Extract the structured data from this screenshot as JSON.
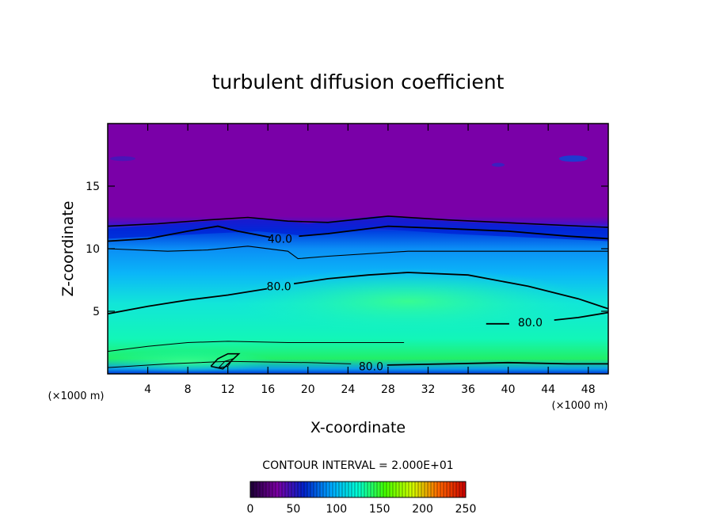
{
  "chart_data": {
    "type": "contour",
    "title": "turbulent diffusion coefficient",
    "xlabel": "X-coordinate",
    "ylabel": "Z-coordinate",
    "x_unit": "(×1000 m)",
    "xlim": [
      0,
      50
    ],
    "ylim": [
      0,
      20
    ],
    "x_ticks": [
      4,
      8,
      12,
      16,
      20,
      24,
      28,
      32,
      36,
      40,
      44,
      48
    ],
    "y_ticks": [
      5,
      10,
      15
    ],
    "contour_interval_text": "CONTOUR INTERVAL = 2.000E+01",
    "contour_labels": [
      {
        "text": "40.0",
        "x": 17.2,
        "y": 10.8
      },
      {
        "text": "80.0",
        "x": 17.1,
        "y": 7.0
      },
      {
        "text": "80.0",
        "x": 42.2,
        "y": 4.1
      },
      {
        "text": "80.0",
        "x": 26.3,
        "y": 0.6
      }
    ],
    "colorbar": {
      "min": 0,
      "max": 250,
      "tick_labels": [
        "0",
        "50",
        "100",
        "150",
        "200",
        "250"
      ],
      "colors": [
        "#1c0036",
        "#7b00a3",
        "#0022cc",
        "#00a8ff",
        "#00ffd5",
        "#44ff00",
        "#d2ff00",
        "#ff6600",
        "#cc0000"
      ]
    },
    "regions": {
      "upper": "#7800a6",
      "mid": "#0bb0fa",
      "lower": "#12f3c2",
      "bottom": "#1cf06a"
    },
    "grid": false
  }
}
